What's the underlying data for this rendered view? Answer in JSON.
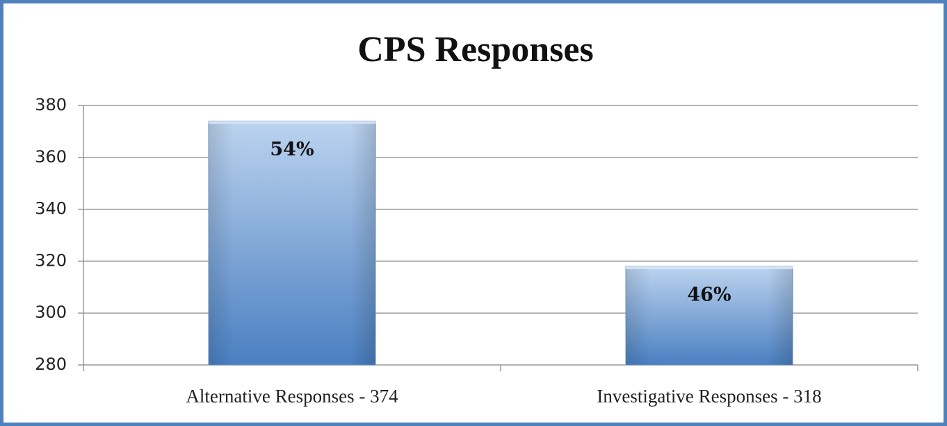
{
  "chart_data": {
    "type": "bar",
    "title": "CPS Responses",
    "categories": [
      "Alternative Responses - 374",
      "Investigative Responses - 318"
    ],
    "values": [
      374,
      318
    ],
    "annotations": [
      "54%",
      "46%"
    ],
    "color": "#4a7fc1",
    "ylim": [
      280,
      380
    ],
    "yticks": [
      280,
      300,
      320,
      340,
      360,
      380
    ],
    "grid": true
  }
}
